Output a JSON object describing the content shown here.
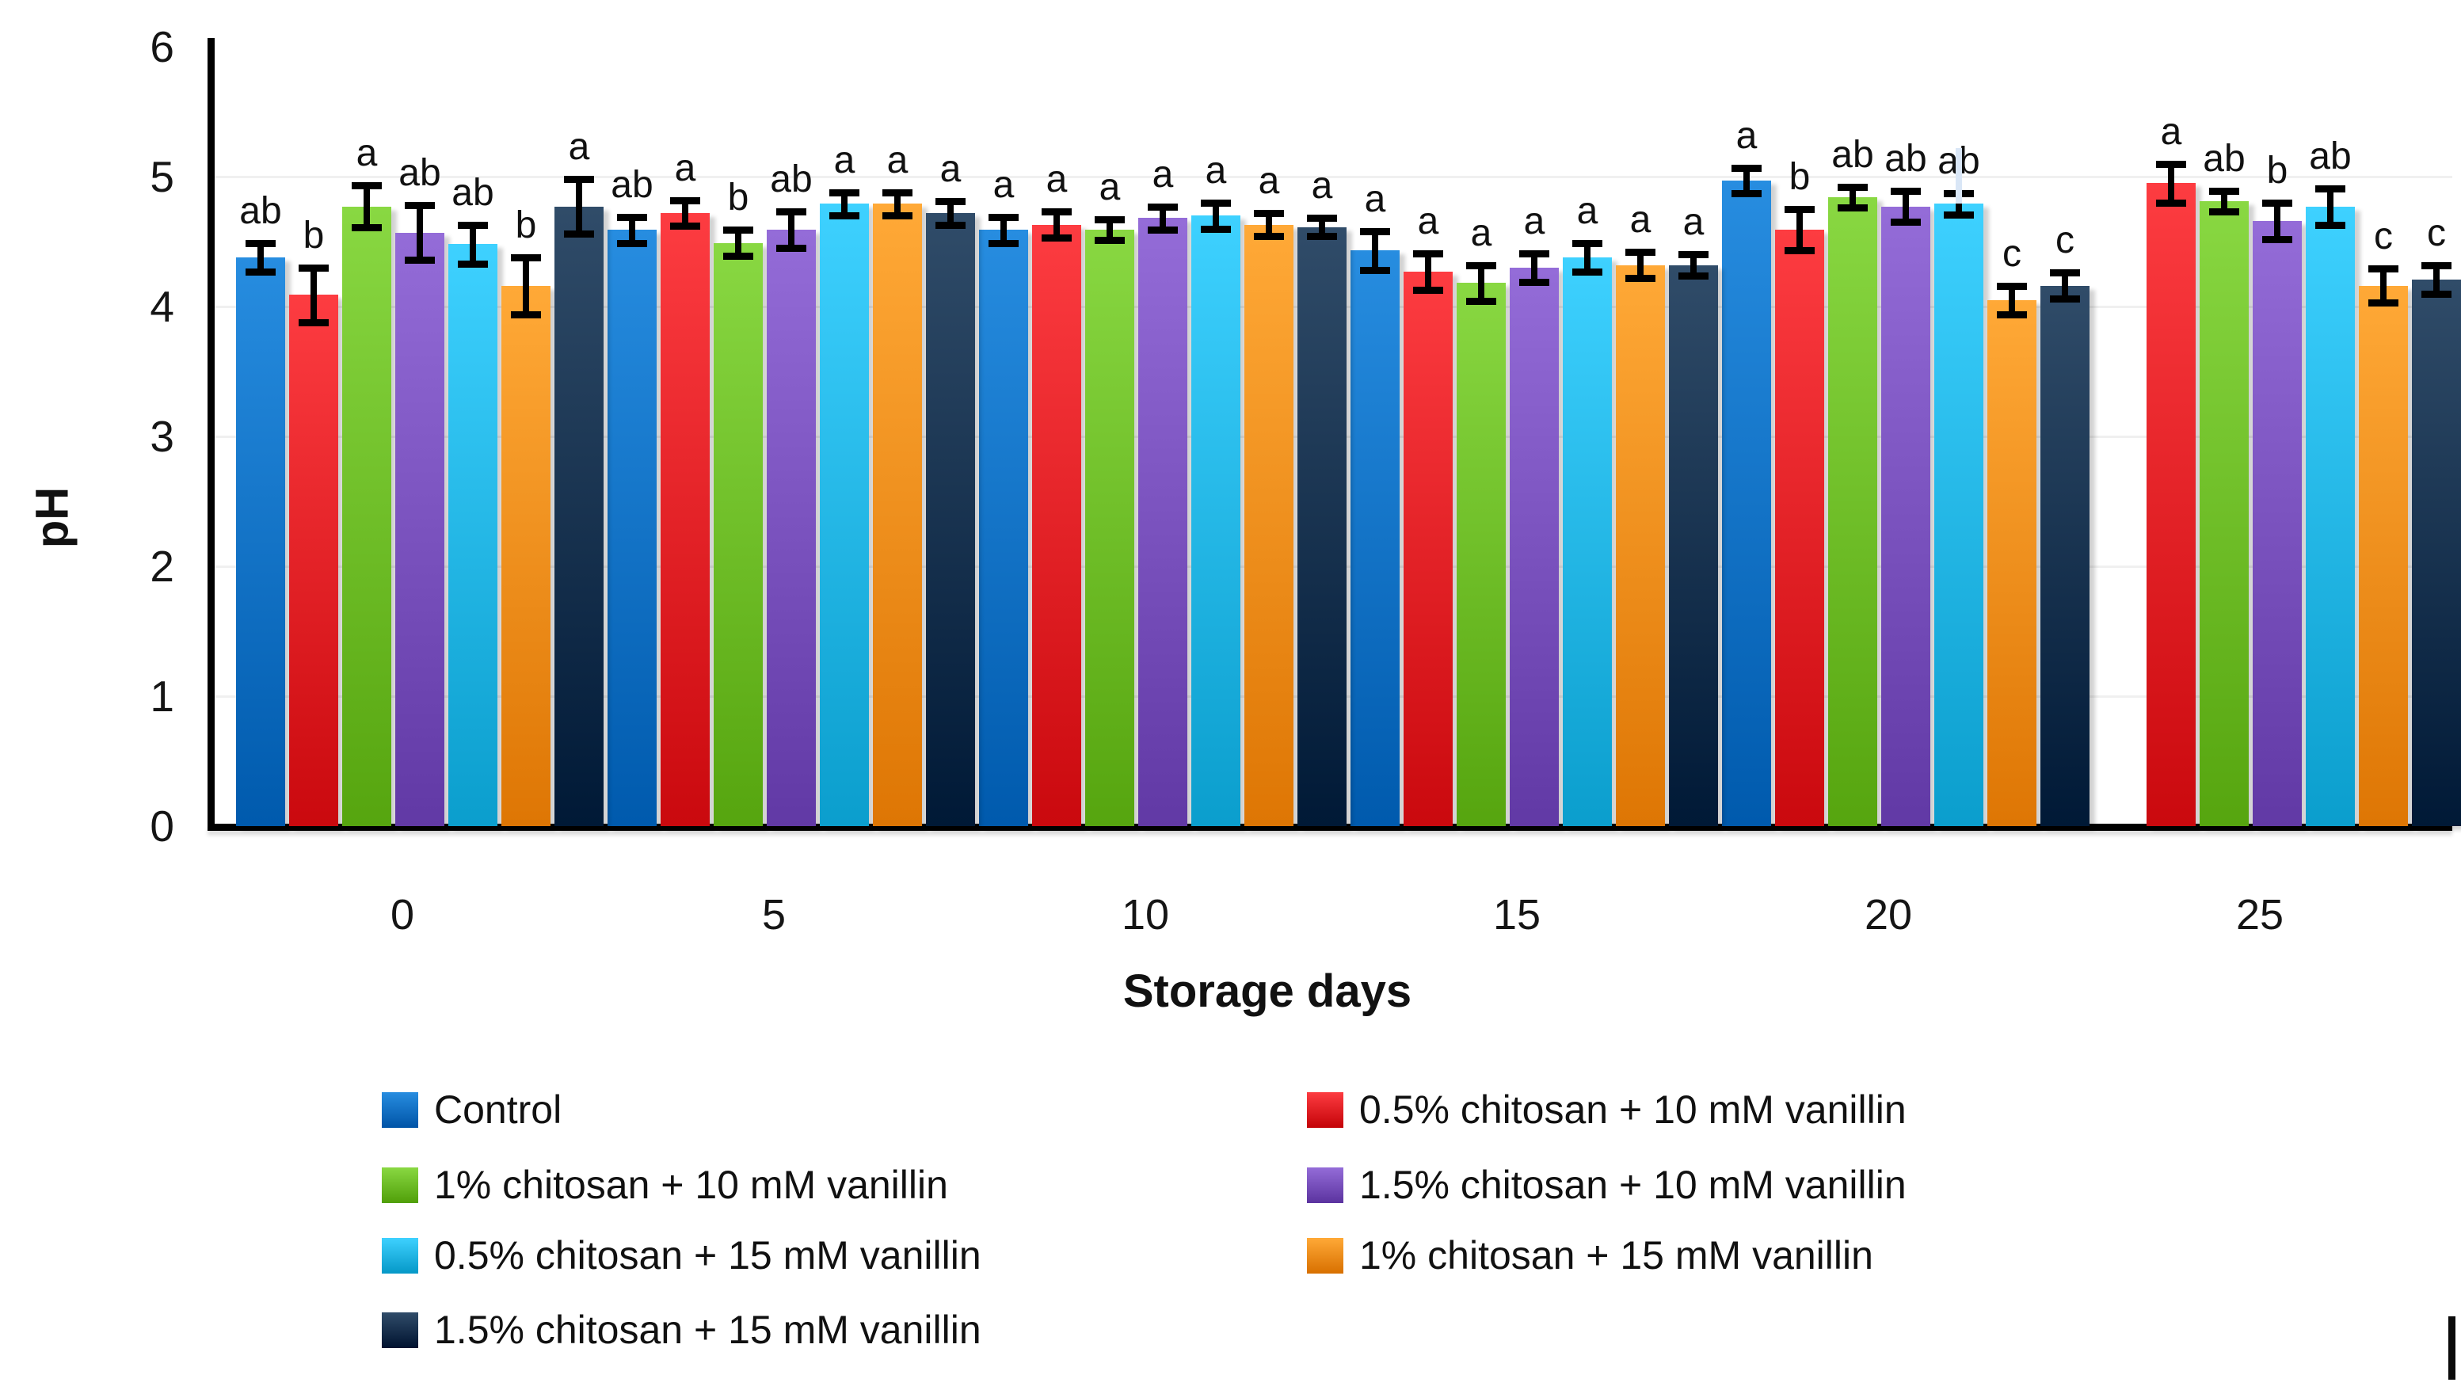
{
  "chart_data": {
    "type": "bar",
    "title": "",
    "xlabel": "Storage days",
    "ylabel": "pH",
    "ylim": [
      0,
      6
    ],
    "yticks": [
      0,
      1,
      2,
      3,
      4,
      5,
      6
    ],
    "grid": "faint horizontal gridlines at integer pH values",
    "legend_position": "bottom, two columns",
    "categories": [
      "0",
      "5",
      "10",
      "15",
      "20",
      "25"
    ],
    "series": [
      {
        "name": "Control",
        "color": "#0D73C6",
        "values": [
          4.38,
          4.59,
          4.59,
          4.43,
          4.97,
          null
        ],
        "errors": [
          0.11,
          0.1,
          0.1,
          0.15,
          0.1,
          null
        ],
        "letters": [
          "ab",
          "ab",
          "a",
          "a",
          "a",
          ""
        ]
      },
      {
        "name": "0.5% chitosan + 10 mM vanillin",
        "color": "#E32227",
        "values": [
          4.09,
          4.72,
          4.63,
          4.27,
          4.59,
          4.95
        ],
        "errors": [
          0.21,
          0.1,
          0.1,
          0.14,
          0.16,
          0.15
        ],
        "letters": [
          "b",
          "a",
          "a",
          "a",
          "b",
          "a"
        ]
      },
      {
        "name": "1% chitosan + 10 mM vanillin",
        "color": "#6FBE28",
        "values": [
          4.77,
          4.49,
          4.59,
          4.18,
          4.84,
          4.81
        ],
        "errors": [
          0.16,
          0.1,
          0.08,
          0.14,
          0.08,
          0.08
        ],
        "letters": [
          "a",
          "b",
          "a",
          "a",
          "ab",
          "ab"
        ]
      },
      {
        "name": "1.5% chitosan + 10 mM vanillin",
        "color": "#7A52BE",
        "values": [
          4.57,
          4.59,
          4.68,
          4.3,
          4.77,
          4.66
        ],
        "errors": [
          0.21,
          0.14,
          0.09,
          0.11,
          0.12,
          0.14
        ],
        "letters": [
          "ab",
          "ab",
          "a",
          "a",
          "ab",
          "b"
        ]
      },
      {
        "name": "0.5% chitosan + 15 mM vanillin",
        "color": "#24B7E6",
        "values": [
          4.48,
          4.79,
          4.7,
          4.38,
          4.79,
          4.77
        ],
        "errors": [
          0.15,
          0.09,
          0.1,
          0.11,
          0.08,
          0.14
        ],
        "letters": [
          "ab",
          "a",
          "a",
          "a",
          "ab",
          "ab"
        ]
      },
      {
        "name": "1% chitosan + 15 mM vanillin",
        "color": "#F78F1D",
        "values": [
          4.16,
          4.79,
          4.63,
          4.32,
          4.05,
          4.16
        ],
        "errors": [
          0.22,
          0.09,
          0.09,
          0.1,
          0.11,
          0.13
        ],
        "letters": [
          "b",
          "a",
          "a",
          "a",
          "c",
          "c"
        ]
      },
      {
        "name": "1.5% chitosan + 15 mM vanillin",
        "color": "#16324F",
        "values": [
          4.77,
          4.72,
          4.61,
          4.32,
          4.16,
          4.21
        ],
        "errors": [
          0.21,
          0.09,
          0.07,
          0.08,
          0.1,
          0.11
        ],
        "letters": [
          "a",
          "a",
          "a",
          "a",
          "c",
          "c"
        ]
      }
    ],
    "legend_columns": [
      [
        0,
        2,
        4,
        6
      ],
      [
        1,
        3,
        5
      ]
    ],
    "artifacts": {
      "light_blue_error_line": {
        "category": "20",
        "series": "0.5% chitosan + 15 mM vanillin",
        "top_ph": 5.22,
        "color": "#D9E6F6"
      },
      "black_caret_mark_bottom_right": "|"
    }
  }
}
